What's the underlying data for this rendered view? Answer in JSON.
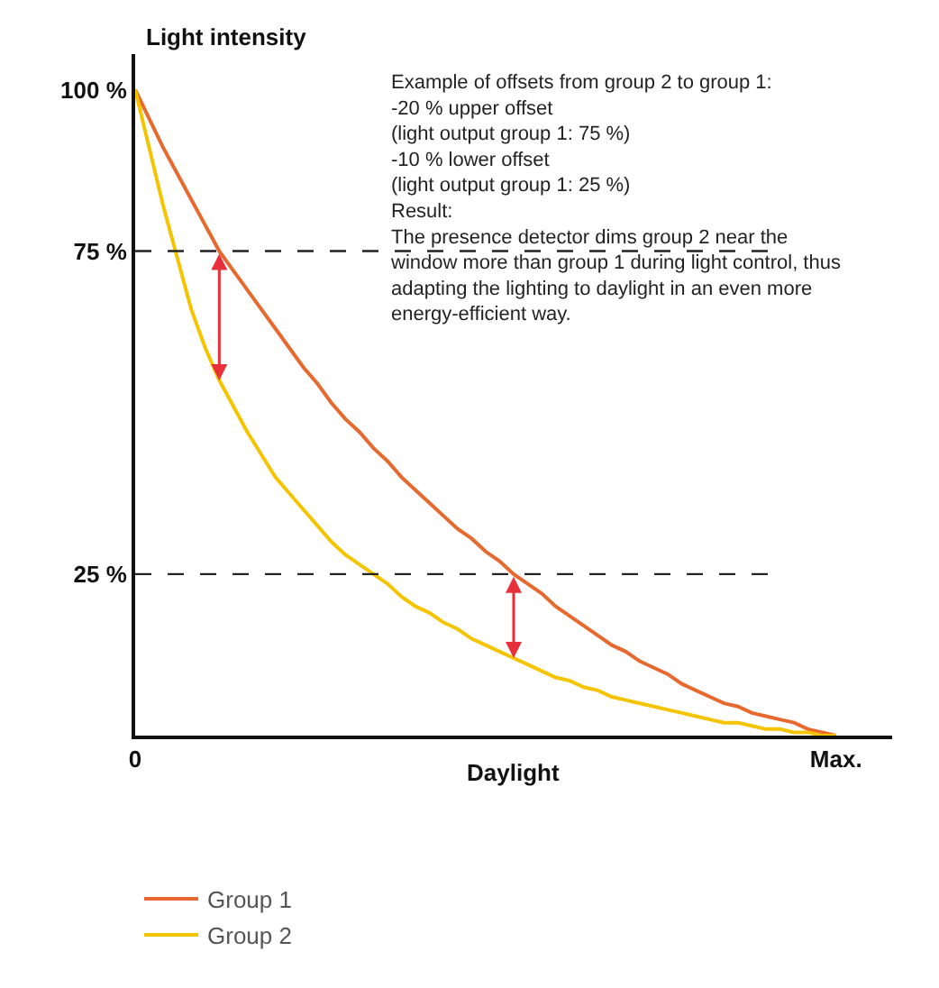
{
  "chart_data": {
    "type": "line",
    "ylabel": "Light intensity",
    "xlabel": "Daylight",
    "categories": [
      "0",
      null,
      null,
      null,
      null,
      null,
      null,
      null,
      null,
      null,
      null,
      null,
      null,
      null,
      null,
      null,
      null,
      null,
      null,
      null,
      null,
      null,
      null,
      null,
      null,
      null,
      null,
      null,
      null,
      null,
      null,
      null,
      null,
      null,
      null,
      null,
      null,
      null,
      null,
      null,
      null,
      null,
      null,
      null,
      null,
      null,
      null,
      null,
      null,
      null,
      "Max."
    ],
    "series": [
      {
        "name": "Group 1",
        "color": "#e8692e",
        "values": [
          100,
          95.5,
          91,
          87,
          83,
          79,
          75,
          72,
          69,
          66,
          63,
          60,
          57,
          54.5,
          51.5,
          49,
          47,
          44.5,
          42.5,
          40,
          38,
          36,
          34,
          32,
          30.5,
          28.5,
          27,
          25,
          23.5,
          22,
          20,
          18.5,
          17,
          15.5,
          14,
          13,
          11.5,
          10.5,
          9.5,
          8,
          7,
          6,
          5,
          4.5,
          3.5,
          3,
          2.5,
          2,
          1,
          0.5,
          0
        ]
      },
      {
        "name": "Group 2",
        "color": "#f5c400",
        "values": [
          100,
          91,
          82,
          74,
          66,
          60,
          55,
          51,
          47,
          43.5,
          40,
          37.5,
          35,
          32.5,
          30,
          28,
          26.5,
          25,
          23.5,
          21.5,
          20,
          19,
          17.5,
          16.5,
          15,
          14,
          13,
          12,
          11,
          10,
          9,
          8.5,
          7.5,
          7,
          6,
          5.5,
          5,
          4.5,
          4,
          3.5,
          3,
          2.5,
          2,
          2,
          1.5,
          1,
          1,
          0.5,
          0.5,
          0,
          0
        ]
      }
    ],
    "ylim": [
      0,
      105.5
    ],
    "yticks": [
      {
        "value": 25,
        "label": "25 %"
      },
      {
        "value": 75,
        "label": "75 %"
      },
      {
        "value": 100,
        "label": "100 %"
      }
    ],
    "ref_lines": [
      {
        "axis": "y",
        "value": 75,
        "color": "#222222",
        "line_style": "dashed"
      },
      {
        "axis": "y",
        "value": 25,
        "color": "#222222",
        "line_style": "dashed"
      }
    ],
    "annotations": [
      "Example of offsets from group 2 to group 1:\n-20 % upper offset\n(light output group 1: 75 %)\n-10 % lower offset\n(light output group 1: 25 %)\nResult:\nThe presence detector dims group 2 near the\nwindow more than group 1 during light control, thus\nadapting the lighting to daylight in an even more\nenergy-efficient way."
    ],
    "legend": "bottom",
    "marker": "none"
  }
}
